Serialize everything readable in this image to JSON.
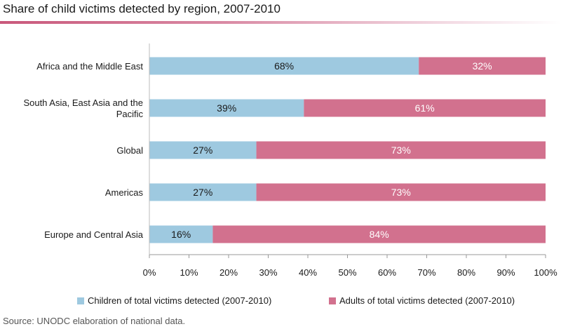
{
  "chart_data": {
    "type": "bar",
    "orientation": "horizontal",
    "stacked": true,
    "title": "Share of child victims detected by region, 2007-2010",
    "categories": [
      [
        "Africa and the Middle East"
      ],
      [
        "South Asia, East Asia and the",
        "Pacific"
      ],
      [
        "Global"
      ],
      [
        "Americas"
      ],
      [
        "Europe and Central Asia"
      ]
    ],
    "series": [
      {
        "name": "Children of total victims detected (2007-2010)",
        "color": "#9ec9e0",
        "values": [
          68,
          39,
          27,
          27,
          16
        ],
        "labels": [
          "68%",
          "39%",
          "27%",
          "27%",
          "16%"
        ]
      },
      {
        "name": "Adults of total victims detected (2007-2010)",
        "color": "#d2718e",
        "values": [
          32,
          61,
          73,
          73,
          84
        ],
        "labels": [
          "32%",
          "61%",
          "73%",
          "73%",
          "84%"
        ]
      }
    ],
    "xlim": [
      0,
      100
    ],
    "xticks": [
      "0%",
      "10%",
      "20%",
      "30%",
      "40%",
      "50%",
      "60%",
      "70%",
      "80%",
      "90%",
      "100%"
    ],
    "legend_position": "bottom",
    "grid": false
  },
  "source": "Source: UNODC elaboration of national data."
}
